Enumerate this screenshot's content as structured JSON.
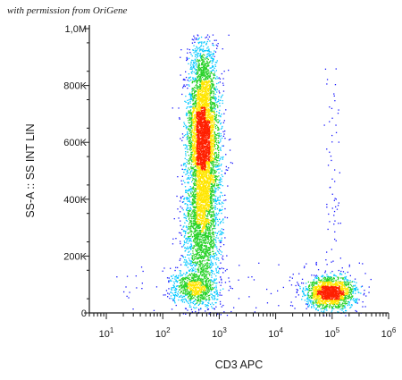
{
  "watermark": "with permission from OriGene",
  "colors": {
    "axis": "#1a1a1a",
    "density_low": "#1a1aff",
    "density_mid": "#00c8ff",
    "density_high_mid": "#28d228",
    "density_high": "#ffe600",
    "density_peak": "#ff2000"
  },
  "chart_data": {
    "type": "scatter",
    "title": "",
    "xlabel": "CD3 APC",
    "ylabel": "SS-A :: SS INT LIN",
    "x_scale": "log",
    "xlim": [
      5,
      1000000
    ],
    "ylim": [
      0,
      1000000
    ],
    "x_ticks": [
      {
        "value": 10,
        "base": "10",
        "exp": "1"
      },
      {
        "value": 100,
        "base": "10",
        "exp": "2"
      },
      {
        "value": 1000,
        "base": "10",
        "exp": "3"
      },
      {
        "value": 10000,
        "base": "10",
        "exp": "4"
      },
      {
        "value": 100000,
        "base": "10",
        "exp": "5"
      },
      {
        "value": 1000000,
        "base": "10",
        "exp": "6"
      }
    ],
    "y_ticks": [
      {
        "value": 0,
        "label": "0"
      },
      {
        "value": 200000,
        "label": "200K"
      },
      {
        "value": 400000,
        "label": "400K"
      },
      {
        "value": 600000,
        "label": "600K"
      },
      {
        "value": 800000,
        "label": "800K"
      },
      {
        "value": 1000000,
        "label": "1,0M"
      }
    ],
    "grid": false,
    "legend": "none",
    "populations": [
      {
        "label": "",
        "x_center": 500,
        "y_center": 650000,
        "x_spread_log": 0.13,
        "y_spread": 150000,
        "count": 3200
      },
      {
        "label": "",
        "x_center": 600,
        "y_center": 450000,
        "x_spread_log": 0.14,
        "y_spread": 220000,
        "count": 2200
      },
      {
        "label": "",
        "x_center": 420,
        "y_center": 280000,
        "x_spread_log": 0.15,
        "y_spread": 110000,
        "count": 900
      },
      {
        "label": "",
        "x_center": 350,
        "y_center": 90000,
        "x_spread_log": 0.2,
        "y_spread": 30000,
        "count": 700
      },
      {
        "label": "",
        "x_center": 95000,
        "y_center": 70000,
        "x_spread_log": 0.22,
        "y_spread": 28000,
        "count": 1600
      },
      {
        "label": "",
        "x_center": 100000,
        "y_center": 450000,
        "x_spread_log": 0.08,
        "y_spread": 280000,
        "count": 70
      }
    ]
  }
}
